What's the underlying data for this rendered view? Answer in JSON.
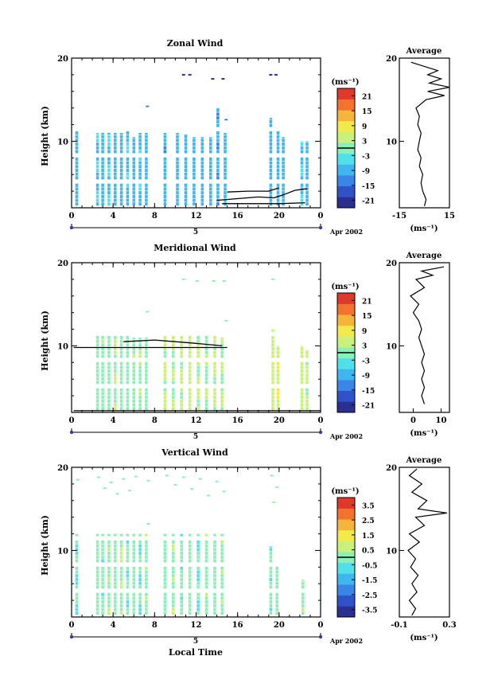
{
  "figure": {
    "date_label": "Apr 2002",
    "x_axis_title": "Local Time",
    "y_axis_title": "Height (km)",
    "average_title": "Average",
    "unit_label": "(ms⁻¹)"
  },
  "chart_data": [
    {
      "type": "heatmap",
      "title": "Zonal Wind",
      "xlabel": "",
      "ylabel": "Height (km)",
      "xlim": [
        0,
        24
      ],
      "ylim": [
        2,
        20
      ],
      "x_ticks": [
        "0",
        "4",
        "8",
        "12",
        "16",
        "20",
        "0"
      ],
      "y_ticks": [
        "10",
        "20"
      ],
      "day_label": "5",
      "colorbar": {
        "label": "(ms⁻¹)",
        "ticks": [
          "21",
          "15",
          "9",
          "3",
          "-3",
          "-9",
          "-15",
          "-21"
        ],
        "range": [
          -24,
          24
        ],
        "marker": 0
      },
      "profiles": [
        {
          "x": 0.5,
          "from": 2.2,
          "to": 11.5,
          "v": -8
        },
        {
          "x": 2.5,
          "from": 2.2,
          "to": 11.0,
          "v": -7
        },
        {
          "x": 3.0,
          "from": 2.2,
          "to": 11.0,
          "v": -8
        },
        {
          "x": 3.6,
          "from": 2.2,
          "to": 11.0,
          "v": -7
        },
        {
          "x": 4.2,
          "from": 2.2,
          "to": 11.0,
          "v": -9
        },
        {
          "x": 4.8,
          "from": 2.2,
          "to": 11.0,
          "v": -8
        },
        {
          "x": 5.4,
          "from": 2.2,
          "to": 11.3,
          "v": -7
        },
        {
          "x": 6.0,
          "from": 2.2,
          "to": 10.5,
          "v": -8
        },
        {
          "x": 6.6,
          "from": 2.2,
          "to": 11.0,
          "v": -7
        },
        {
          "x": 7.2,
          "from": 2.2,
          "to": 11.0,
          "v": -8
        },
        {
          "x": 9.0,
          "from": 2.2,
          "to": 11.0,
          "v": -10
        },
        {
          "x": 10.2,
          "from": 2.2,
          "to": 11.0,
          "v": -9
        },
        {
          "x": 11.0,
          "from": 2.2,
          "to": 10.8,
          "v": -8
        },
        {
          "x": 11.8,
          "from": 2.2,
          "to": 10.5,
          "v": -9
        },
        {
          "x": 12.6,
          "from": 2.2,
          "to": 10.5,
          "v": -8
        },
        {
          "x": 13.4,
          "from": 2.2,
          "to": 10.5,
          "v": -9
        },
        {
          "x": 14.1,
          "from": 2.2,
          "to": 14.0,
          "v": -10
        },
        {
          "x": 14.8,
          "from": 2.2,
          "to": 11.0,
          "v": -8
        },
        {
          "x": 19.2,
          "from": 2.2,
          "to": 12.8,
          "v": -9
        },
        {
          "x": 19.9,
          "from": 2.2,
          "to": 11.5,
          "v": -8
        },
        {
          "x": 20.4,
          "from": 2.2,
          "to": 10.5,
          "v": -9
        },
        {
          "x": 22.2,
          "from": 2.2,
          "to": 10.0,
          "v": -7
        },
        {
          "x": 22.7,
          "from": 2.2,
          "to": 10.0,
          "v": -8
        }
      ],
      "speckles": [
        {
          "x": 10.8,
          "y": 18.0,
          "v": -20
        },
        {
          "x": 11.4,
          "y": 18.0,
          "v": -20
        },
        {
          "x": 13.6,
          "y": 17.5,
          "v": -21
        },
        {
          "x": 14.6,
          "y": 17.5,
          "v": -21
        },
        {
          "x": 19.2,
          "y": 18.0,
          "v": -21
        },
        {
          "x": 19.7,
          "y": 18.0,
          "v": -21
        },
        {
          "x": 7.3,
          "y": 14.2,
          "v": -15
        },
        {
          "x": 14.9,
          "y": 12.6,
          "v": -12
        }
      ],
      "contours": [
        [
          [
            14.0,
            2.9
          ],
          [
            16.0,
            3.1
          ],
          [
            18.0,
            3.3
          ],
          [
            19.5,
            3.2
          ],
          [
            20.5,
            3.6
          ],
          [
            21.5,
            4.1
          ],
          [
            22.7,
            4.3
          ]
        ],
        [
          [
            14.5,
            2.5
          ],
          [
            17.0,
            2.5
          ],
          [
            20.0,
            2.5
          ],
          [
            22.5,
            2.6
          ]
        ],
        [
          [
            15.0,
            3.9
          ],
          [
            17.0,
            4.0
          ],
          [
            19.0,
            4.0
          ],
          [
            20.0,
            4.4
          ]
        ]
      ],
      "average": {
        "xlim": [
          -15,
          15
        ],
        "x_ticks": [
          "-15",
          "15"
        ],
        "y_ticks": [
          "10",
          "20"
        ],
        "profile": [
          [
            0,
            2.2
          ],
          [
            1,
            3
          ],
          [
            -1,
            4
          ],
          [
            -2,
            5
          ],
          [
            -1,
            6
          ],
          [
            -3,
            7
          ],
          [
            -2,
            8
          ],
          [
            -4,
            9
          ],
          [
            -3,
            10
          ],
          [
            -2,
            11
          ],
          [
            -4,
            12
          ],
          [
            -3,
            13
          ],
          [
            -5,
            14
          ],
          [
            1,
            15
          ],
          [
            12,
            15.5
          ],
          [
            2,
            16
          ],
          [
            15,
            16.5
          ],
          [
            3,
            17.0
          ],
          [
            10,
            17.5
          ],
          [
            2,
            18
          ],
          [
            8,
            18.5
          ],
          [
            0,
            19
          ],
          [
            -8,
            19.5
          ]
        ]
      }
    },
    {
      "type": "heatmap",
      "title": "Meridional Wind",
      "xlabel": "",
      "ylabel": "Height (km)",
      "xlim": [
        0,
        24
      ],
      "ylim": [
        2,
        20
      ],
      "x_ticks": [
        "0",
        "4",
        "8",
        "12",
        "16",
        "20",
        "0"
      ],
      "y_ticks": [
        "10",
        "20"
      ],
      "day_label": "5",
      "colorbar": {
        "label": "(ms⁻¹)",
        "ticks": [
          "21",
          "15",
          "9",
          "3",
          "-3",
          "-9",
          "-15",
          "-21"
        ],
        "range": [
          -24,
          24
        ],
        "marker": 0
      },
      "profiles": [
        {
          "x": 2.5,
          "from": 2.2,
          "to": 11.5,
          "v": 0
        },
        {
          "x": 3.0,
          "from": 2.2,
          "to": 11.5,
          "v": 1
        },
        {
          "x": 3.6,
          "from": 2.2,
          "to": 11.5,
          "v": 0
        },
        {
          "x": 4.2,
          "from": 2.2,
          "to": 11.5,
          "v": 2
        },
        {
          "x": 4.8,
          "from": 2.2,
          "to": 11.5,
          "v": 1
        },
        {
          "x": 5.4,
          "from": 2.2,
          "to": 11.5,
          "v": 0
        },
        {
          "x": 6.0,
          "from": 2.2,
          "to": 11.0,
          "v": 1
        },
        {
          "x": 6.6,
          "from": 2.2,
          "to": 11.0,
          "v": 2
        },
        {
          "x": 7.2,
          "from": 2.2,
          "to": 11.0,
          "v": 0
        },
        {
          "x": 9.0,
          "from": 2.2,
          "to": 11.5,
          "v": 3
        },
        {
          "x": 9.8,
          "from": 2.2,
          "to": 11.5,
          "v": 2
        },
        {
          "x": 10.6,
          "from": 2.2,
          "to": 11.5,
          "v": 3
        },
        {
          "x": 11.4,
          "from": 2.2,
          "to": 11.5,
          "v": 4
        },
        {
          "x": 12.2,
          "from": 2.2,
          "to": 11.5,
          "v": 3
        },
        {
          "x": 13.0,
          "from": 2.2,
          "to": 11.5,
          "v": 2
        },
        {
          "x": 13.8,
          "from": 2.2,
          "to": 11.5,
          "v": 3
        },
        {
          "x": 14.5,
          "from": 2.2,
          "to": 11.0,
          "v": 2
        },
        {
          "x": 19.4,
          "from": 2.2,
          "to": 12.0,
          "v": 5
        },
        {
          "x": 19.9,
          "from": 2.2,
          "to": 10.0,
          "v": 6
        },
        {
          "x": 22.2,
          "from": 2.2,
          "to": 10.0,
          "v": 4
        },
        {
          "x": 22.7,
          "from": 2.2,
          "to": 9.5,
          "v": 3
        }
      ],
      "speckles": [
        {
          "x": 10.8,
          "y": 18.0,
          "v": 1
        },
        {
          "x": 12.1,
          "y": 17.8,
          "v": 2
        },
        {
          "x": 13.7,
          "y": 17.8,
          "v": 1
        },
        {
          "x": 14.7,
          "y": 17.8,
          "v": 2
        },
        {
          "x": 19.4,
          "y": 18.0,
          "v": 1
        },
        {
          "x": 7.3,
          "y": 14.1,
          "v": 0
        },
        {
          "x": 14.9,
          "y": 13.0,
          "v": 1
        }
      ],
      "contours": [
        [
          [
            0.2,
            9.8
          ],
          [
            4.0,
            9.8
          ],
          [
            8.0,
            9.8
          ],
          [
            12.0,
            9.8
          ],
          [
            15.0,
            9.8
          ]
        ],
        [
          [
            5.0,
            10.5
          ],
          [
            8.0,
            10.7
          ],
          [
            10.0,
            10.5
          ],
          [
            12.0,
            10.3
          ],
          [
            14.5,
            10.0
          ]
        ],
        [
          [
            0.2,
            2.2
          ],
          [
            24.0,
            2.2
          ]
        ]
      ],
      "average": {
        "xlim": [
          -5,
          13
        ],
        "x_ticks": [
          "0",
          "10"
        ],
        "y_ticks": [
          "10",
          "20"
        ],
        "profile": [
          [
            4,
            3
          ],
          [
            3,
            4
          ],
          [
            4,
            5
          ],
          [
            3,
            6
          ],
          [
            4,
            7
          ],
          [
            3,
            8
          ],
          [
            4,
            9
          ],
          [
            3,
            10
          ],
          [
            2,
            11
          ],
          [
            3,
            12
          ],
          [
            2,
            13
          ],
          [
            0,
            14
          ],
          [
            2,
            15
          ],
          [
            -1,
            16
          ],
          [
            4,
            17
          ],
          [
            1,
            18
          ],
          [
            7,
            18.5
          ],
          [
            3,
            19
          ],
          [
            11,
            19.5
          ]
        ]
      }
    },
    {
      "type": "heatmap",
      "title": "Vertical Wind",
      "xlabel": "Local Time",
      "ylabel": "Height (km)",
      "xlim": [
        0,
        24
      ],
      "ylim": [
        2,
        20
      ],
      "x_ticks": [
        "0",
        "4",
        "8",
        "12",
        "16",
        "20",
        "0"
      ],
      "y_ticks": [
        "10",
        "20"
      ],
      "day_label": "5",
      "colorbar": {
        "label": "(ms⁻¹)",
        "ticks": [
          "3.5",
          "2.5",
          "1.5",
          "0.5",
          "-0.5",
          "-1.5",
          "-2.5",
          "-3.5"
        ],
        "range": [
          -4,
          4
        ],
        "marker": 0
      },
      "profiles": [
        {
          "x": 0.5,
          "from": 2.2,
          "to": 12.0,
          "v": -0.3
        },
        {
          "x": 2.5,
          "from": 2.2,
          "to": 12.0,
          "v": 0.1
        },
        {
          "x": 3.0,
          "from": 2.2,
          "to": 12.0,
          "v": -0.2
        },
        {
          "x": 3.6,
          "from": 2.2,
          "to": 12.0,
          "v": 0.2
        },
        {
          "x": 4.2,
          "from": 2.2,
          "to": 12.0,
          "v": -0.1
        },
        {
          "x": 4.8,
          "from": 2.2,
          "to": 12.0,
          "v": 0.3
        },
        {
          "x": 5.4,
          "from": 2.2,
          "to": 12.0,
          "v": -0.2
        },
        {
          "x": 6.0,
          "from": 2.2,
          "to": 12.0,
          "v": 0.1
        },
        {
          "x": 6.6,
          "from": 2.2,
          "to": 12.0,
          "v": -0.3
        },
        {
          "x": 7.2,
          "from": 2.2,
          "to": 12.0,
          "v": 0.2
        },
        {
          "x": 9.0,
          "from": 2.2,
          "to": 12.0,
          "v": -0.1
        },
        {
          "x": 9.8,
          "from": 2.2,
          "to": 12.0,
          "v": 0.2
        },
        {
          "x": 10.6,
          "from": 2.2,
          "to": 12.0,
          "v": -0.2
        },
        {
          "x": 11.4,
          "from": 2.2,
          "to": 12.0,
          "v": 0.1
        },
        {
          "x": 12.2,
          "from": 2.2,
          "to": 12.0,
          "v": -0.3
        },
        {
          "x": 13.0,
          "from": 2.2,
          "to": 12.0,
          "v": 0.2
        },
        {
          "x": 13.8,
          "from": 2.2,
          "to": 12.0,
          "v": -0.1
        },
        {
          "x": 14.5,
          "from": 2.2,
          "to": 12.0,
          "v": 0.2
        },
        {
          "x": 19.2,
          "from": 2.2,
          "to": 10.5,
          "v": -0.2
        },
        {
          "x": 19.8,
          "from": 2.2,
          "to": 8.5,
          "v": 0.1
        },
        {
          "x": 22.3,
          "from": 2.2,
          "to": 6.5,
          "v": 0.2
        }
      ],
      "speckles": [
        {
          "x": 0.6,
          "y": 18.5,
          "v": 0.1
        },
        {
          "x": 2.6,
          "y": 18.8,
          "v": -0.2
        },
        {
          "x": 3.2,
          "y": 17.5,
          "v": 0.3
        },
        {
          "x": 3.8,
          "y": 18.2,
          "v": -0.1
        },
        {
          "x": 4.4,
          "y": 16.8,
          "v": 0.2
        },
        {
          "x": 5.0,
          "y": 18.6,
          "v": -0.3
        },
        {
          "x": 5.6,
          "y": 17.2,
          "v": 0.1
        },
        {
          "x": 6.2,
          "y": 18.9,
          "v": 0.2
        },
        {
          "x": 7.4,
          "y": 18.4,
          "v": -0.2
        },
        {
          "x": 9.2,
          "y": 19.0,
          "v": 0.1
        },
        {
          "x": 10.0,
          "y": 17.9,
          "v": -0.1
        },
        {
          "x": 10.8,
          "y": 18.8,
          "v": 0.3
        },
        {
          "x": 11.6,
          "y": 17.4,
          "v": -0.2
        },
        {
          "x": 12.4,
          "y": 18.6,
          "v": 0.1
        },
        {
          "x": 13.2,
          "y": 16.6,
          "v": 0.2
        },
        {
          "x": 14.0,
          "y": 18.3,
          "v": -0.3
        },
        {
          "x": 14.7,
          "y": 17.1,
          "v": 0.1
        },
        {
          "x": 19.3,
          "y": 19.0,
          "v": 0.2
        },
        {
          "x": 19.8,
          "y": 17.6,
          "v": -0.1
        },
        {
          "x": 19.5,
          "y": 15.8,
          "v": 0.1
        },
        {
          "x": 7.4,
          "y": 13.2,
          "v": -0.1
        }
      ],
      "contours": [],
      "average": {
        "xlim": [
          -0.1,
          0.3
        ],
        "x_ticks": [
          "-0.1",
          "0.3"
        ],
        "y_ticks": [
          "10",
          "20"
        ],
        "profile": [
          [
            0.0,
            2.2
          ],
          [
            0.03,
            3
          ],
          [
            -0.02,
            4
          ],
          [
            0.04,
            5
          ],
          [
            0.0,
            6
          ],
          [
            0.05,
            7
          ],
          [
            -0.01,
            8
          ],
          [
            0.03,
            9
          ],
          [
            -0.03,
            10
          ],
          [
            0.06,
            11
          ],
          [
            -0.02,
            12
          ],
          [
            0.1,
            13
          ],
          [
            0.03,
            14
          ],
          [
            0.28,
            14.5
          ],
          [
            0.05,
            15
          ],
          [
            0.12,
            16
          ],
          [
            0.0,
            17
          ],
          [
            0.08,
            18
          ],
          [
            -0.02,
            19
          ],
          [
            0.04,
            19.8
          ]
        ]
      }
    }
  ]
}
